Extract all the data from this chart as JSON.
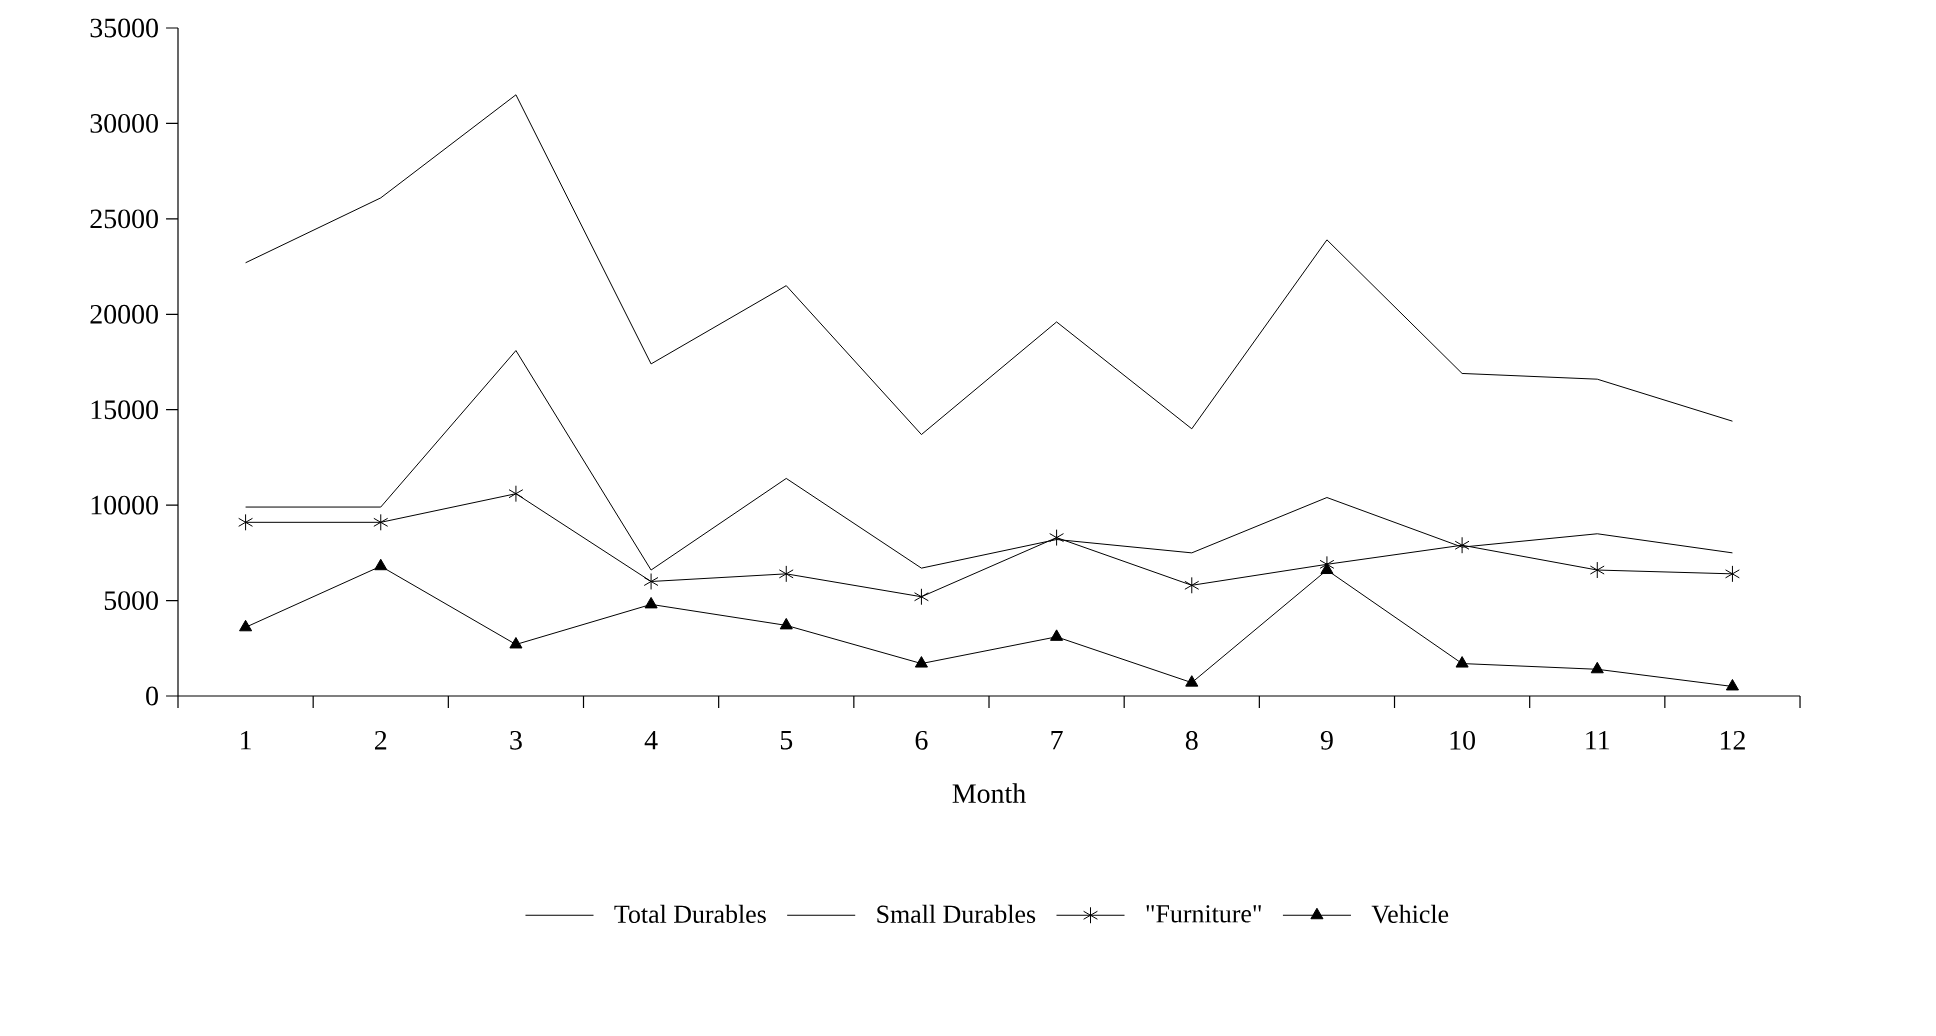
{
  "chart_data": {
    "type": "line",
    "xlabel": "Month",
    "categories": [
      "1",
      "2",
      "3",
      "4",
      "5",
      "6",
      "7",
      "8",
      "9",
      "10",
      "11",
      "12"
    ],
    "ylim": [
      0,
      35000
    ],
    "yticks": [
      0,
      5000,
      10000,
      15000,
      20000,
      25000,
      30000,
      35000
    ],
    "legend": "bottom",
    "grid": false,
    "series": [
      {
        "name": "Total Durables",
        "color": "#000000",
        "marker": "none",
        "values": [
          22700,
          26100,
          31500,
          17400,
          21500,
          13700,
          19600,
          14000,
          23900,
          16900,
          16600,
          14400
        ]
      },
      {
        "name": "Small Durables",
        "color": "#000000",
        "marker": "none",
        "values": [
          9900,
          9900,
          18100,
          6600,
          11400,
          6700,
          8200,
          7500,
          10400,
          7800,
          8500,
          7500
        ]
      },
      {
        "name": "\"Furniture\"",
        "color": "#000000",
        "marker": "cross",
        "values": [
          9100,
          9100,
          10600,
          6000,
          6400,
          5200,
          8300,
          5800,
          6900,
          7900,
          6600,
          6400
        ]
      },
      {
        "name": "Vehicle",
        "color": "#000000",
        "marker": "triangle",
        "values": [
          3600,
          6800,
          2700,
          4800,
          3700,
          1700,
          3100,
          700,
          6600,
          1700,
          1400,
          500
        ]
      }
    ]
  }
}
